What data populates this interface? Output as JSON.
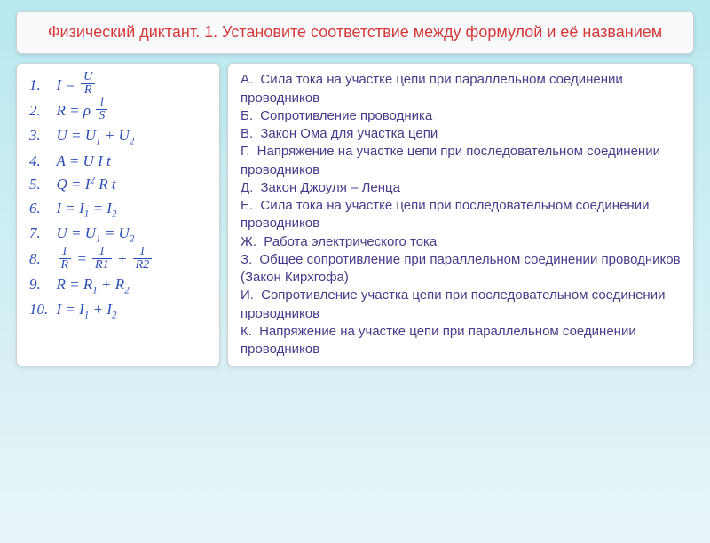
{
  "header": {
    "title": "Физический диктант. 1. Установите соответствие между формулой и её названием",
    "color": "#d63838",
    "fontsize": 18
  },
  "formulas": {
    "color": "#2a4db8",
    "fontsize": 17,
    "items": [
      {
        "n": "1.",
        "html": "I = <span class='frac'><span class='top'>U</span><span class='bot'>R</span></span>"
      },
      {
        "n": "2.",
        "html": "R = ρ <span class='frac'><span class='top'>l</span><span class='bot'>S</span></span>"
      },
      {
        "n": "3.",
        "html": "U = U<span class='sub'>1</span> + U<span class='sub'>2</span>"
      },
      {
        "n": "4.",
        "html": "A = U I t"
      },
      {
        "n": "5.",
        "html": "Q = I<span class='sup'>2</span> R t"
      },
      {
        "n": "6.",
        "html": "I = I<span class='sub'>1</span> = I<span class='sub'>2</span>"
      },
      {
        "n": "7.",
        "html": "U = U<span class='sub'>1</span> = U<span class='sub'>2</span>"
      },
      {
        "n": "8.",
        "html": "<span class='frac'><span class='top'>1</span><span class='bot'>R</span></span> = <span class='frac'><span class='top'>1</span><span class='bot'>R1</span></span> + <span class='frac'><span class='top'>1</span><span class='bot'>R2</span></span>"
      },
      {
        "n": "9.",
        "html": "R = R<span class='sub'>1</span> + R<span class='sub'>2</span>"
      },
      {
        "n": "10.",
        "html": "I = I<span class='sub'>1</span> + I<span class='sub'>2</span>"
      }
    ]
  },
  "answers": {
    "color": "#4a3a8a",
    "fontsize": 15,
    "items": [
      {
        "letter": "А.",
        "text": "Сила тока на участке цепи при параллельном соединении проводников"
      },
      {
        "letter": "Б.",
        "text": "Сопротивление проводника"
      },
      {
        "letter": "В.",
        "text": "Закон Ома для участка цепи"
      },
      {
        "letter": "Г.",
        "text": "Напряжение на участке цепи при последовательном соединении проводников"
      },
      {
        "letter": "Д.",
        "text": "Закон Джоуля – Ленца"
      },
      {
        "letter": "Е.",
        "text": "Сила тока на участке цепи при последовательном соединении проводников"
      },
      {
        "letter": "Ж.",
        "text": "Работа электрического тока"
      },
      {
        "letter": "З.",
        "text": "Общее сопротивление при параллельном соединении проводников (Закон Кирхгофа)"
      },
      {
        "letter": "И.",
        "text": "Сопротивление участка цепи при последовательном соединении проводников"
      },
      {
        "letter": "К.",
        "text": "Напряжение на участке цепи при параллельном соединении проводников"
      }
    ]
  },
  "background": {
    "gradient_top": "#b8e8f0",
    "gradient_bottom": "#e8f5f8"
  },
  "box_style": {
    "background": "#ffffff",
    "border_color": "#d0d0d0",
    "border_radius": 6
  }
}
